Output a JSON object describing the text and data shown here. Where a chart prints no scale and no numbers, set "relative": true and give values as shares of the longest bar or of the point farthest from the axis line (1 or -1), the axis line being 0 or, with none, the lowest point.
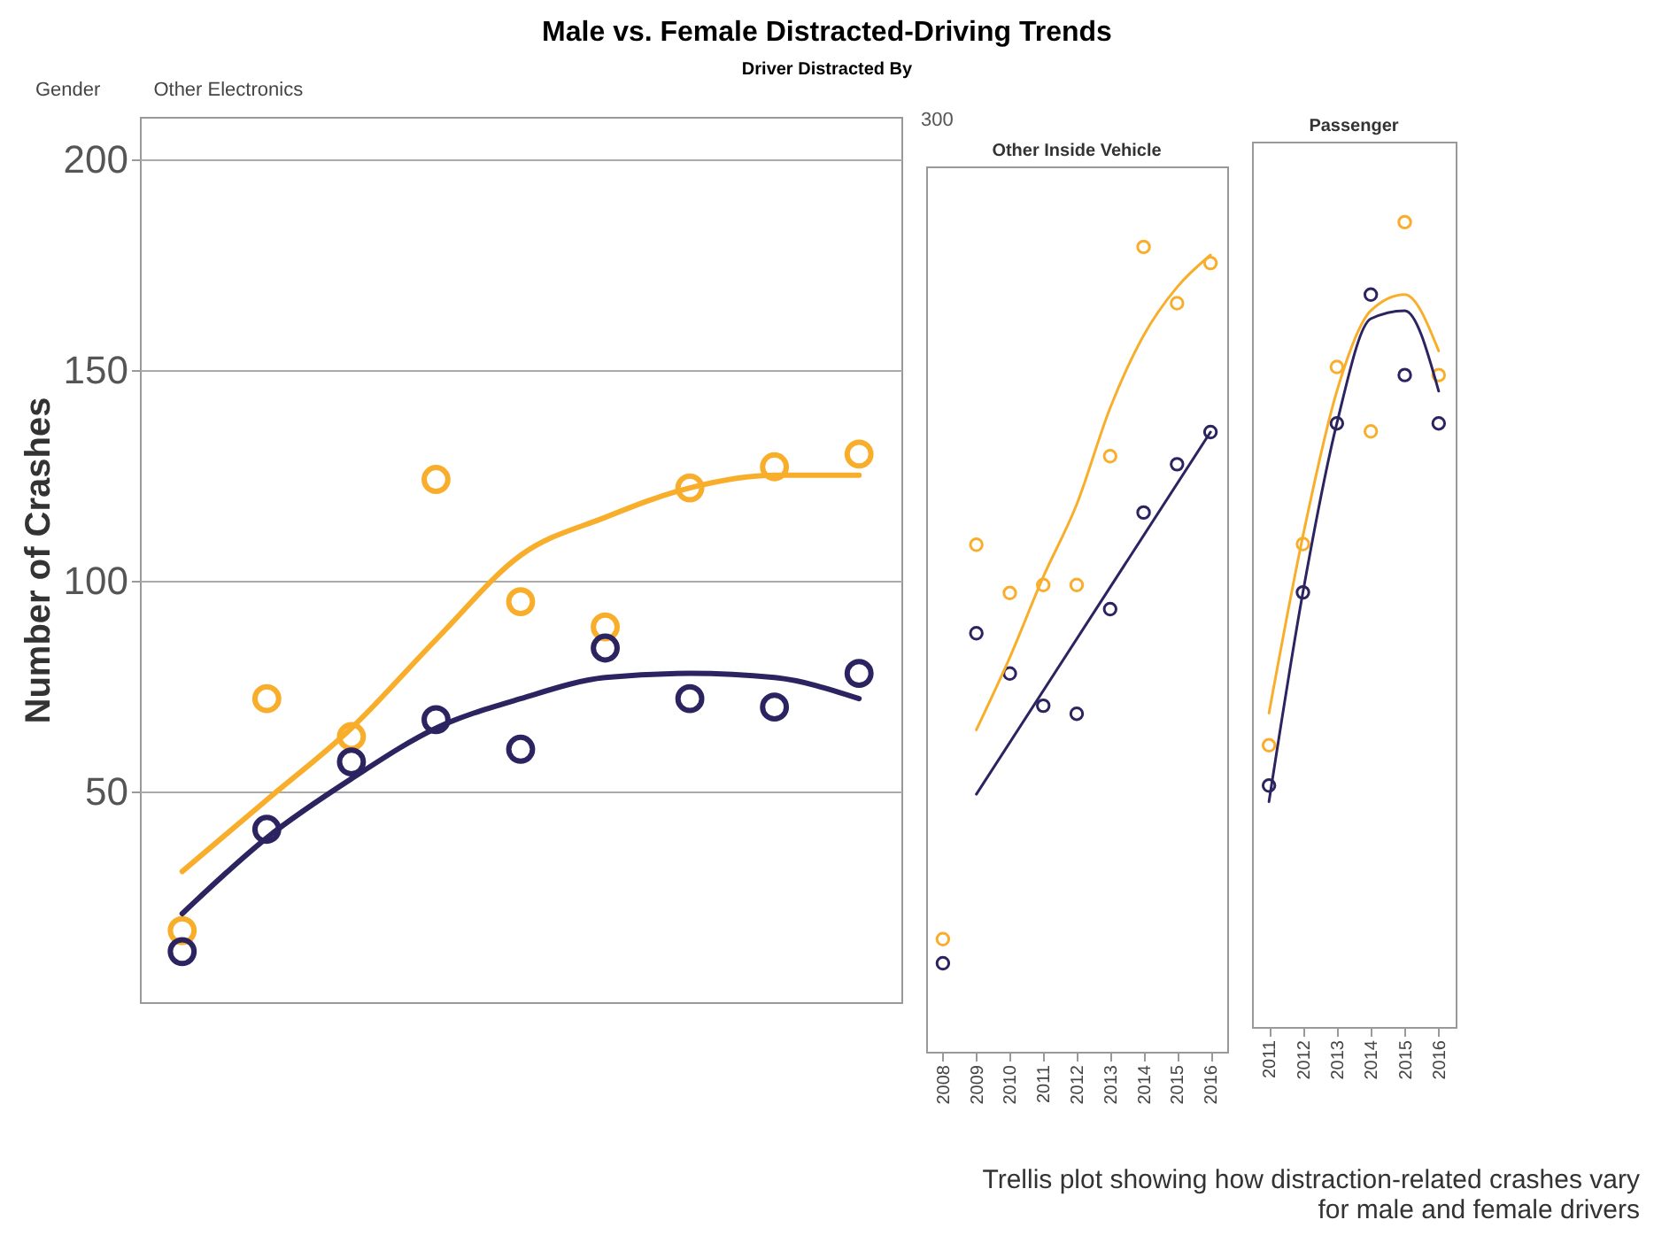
{
  "chart_data": [
    {
      "type": "scatter",
      "title": "Male vs. Female Distracted-Driving Trends",
      "subtitle": "Driver Distracted By",
      "ylabel": "Number of Crashes",
      "categories": [
        null,
        null,
        null,
        null,
        null,
        null,
        null,
        null,
        null
      ],
      "ylim": [
        0,
        210
      ],
      "yticks": [
        50,
        100,
        150,
        200
      ],
      "grid": "y",
      "tick_labels": "y",
      "annotations": [
        "Gender",
        "Other Electronics",
        "Trellis plot showing how distraction-related crashes vary for male and female drivers"
      ],
      "series": [
        {
          "color": "#f9ae2b",
          "marker": "circle",
          "values": [
            17,
            72,
            63,
            124,
            95,
            89,
            122,
            127,
            130
          ]
        },
        {
          "color": "#2b2461",
          "marker": "circle",
          "values": [
            12,
            41,
            57,
            67,
            60,
            84,
            72,
            70,
            78
          ]
        },
        {
          "type": "line",
          "color": "#f9ae2b",
          "line_style": "solid",
          "values": [
            31,
            48,
            65,
            86,
            106,
            115,
            122,
            125,
            125
          ]
        },
        {
          "type": "line",
          "color": "#2b2461",
          "line_style": "solid",
          "values": [
            21,
            39,
            53,
            65,
            72,
            77,
            78,
            77,
            72
          ]
        }
      ]
    },
    {
      "type": "scatter",
      "title": "Other Inside Vehicle",
      "relative": true,
      "annotations": [
        "300"
      ],
      "x": [
        2008,
        2009,
        2010,
        2011,
        2012,
        2013,
        2014,
        2015,
        2016
      ],
      "xlim": [
        2007.5,
        2016.5
      ],
      "xticks": [
        2008,
        2009,
        2010,
        2011,
        2012,
        2013,
        2014,
        2015,
        2016
      ],
      "series": [
        {
          "color": "#f9ae2b",
          "marker": "circle",
          "values": [
            0.14,
            0.63,
            0.57,
            0.58,
            0.58,
            0.74,
            1,
            0.93,
            0.98
          ]
        },
        {
          "color": "#2b2461",
          "marker": "circle",
          "values": [
            0.11,
            0.52,
            0.47,
            0.43,
            0.42,
            0.55,
            0.67,
            0.73,
            0.77
          ]
        },
        {
          "type": "line",
          "color": "#f9ae2b",
          "line_style": "solid",
          "x": [
            2009,
            2010,
            2011,
            2012,
            2013,
            2014,
            2015,
            2016
          ],
          "values": [
            0.4,
            0.49,
            0.59,
            0.68,
            0.8,
            0.89,
            0.95,
            0.99
          ]
        },
        {
          "type": "line",
          "color": "#2b2461",
          "line_style": "solid",
          "x": [
            2009,
            2016
          ],
          "values": [
            0.32,
            0.77
          ]
        }
      ]
    },
    {
      "type": "scatter",
      "title": "Passenger",
      "relative": true,
      "x": [
        2011,
        2012,
        2013,
        2014,
        2015,
        2016
      ],
      "xlim": [
        2010.5,
        2016.5
      ],
      "xticks": [
        2011,
        2012,
        2013,
        2014,
        2015,
        2016
      ],
      "series": [
        {
          "color": "#f9ae2b",
          "marker": "circle",
          "values": [
            0.35,
            0.6,
            0.82,
            0.74,
            1,
            0.81
          ]
        },
        {
          "color": "#2b2461",
          "marker": "circle",
          "values": [
            0.3,
            0.54,
            0.75,
            0.91,
            0.81,
            0.75
          ]
        },
        {
          "type": "line",
          "color": "#f9ae2b",
          "line_style": "solid",
          "values": [
            0.39,
            0.61,
            0.79,
            0.89,
            0.91,
            0.84
          ]
        },
        {
          "type": "line",
          "color": "#2b2461",
          "line_style": "solid",
          "values": [
            0.28,
            0.54,
            0.75,
            0.88,
            0.89,
            0.79
          ]
        }
      ]
    }
  ]
}
